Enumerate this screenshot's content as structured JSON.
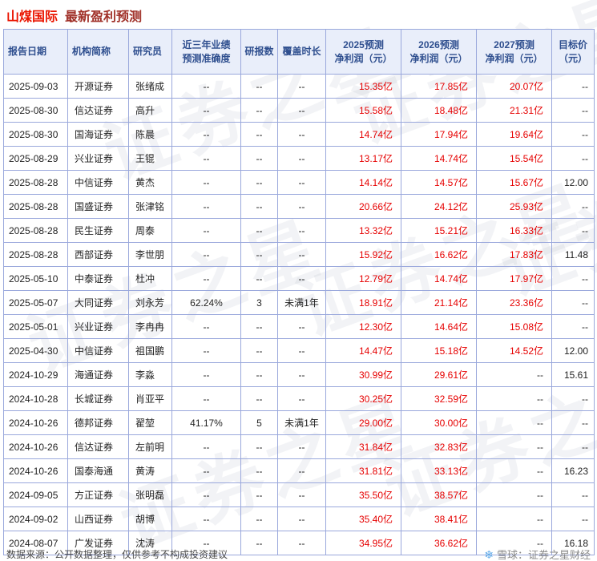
{
  "page": {
    "title_stock": "山煤国际",
    "title_rest": "最新盈利预测"
  },
  "chart_data": {
    "type": "table",
    "title": "山煤国际 最新盈利预测",
    "columns": [
      {
        "line1": "报告日期",
        "line2": ""
      },
      {
        "line1": "机构简称",
        "line2": ""
      },
      {
        "line1": "研究员",
        "line2": ""
      },
      {
        "line1": "近三年业绩",
        "line2": "预测准确度"
      },
      {
        "line1": "研报数",
        "line2": ""
      },
      {
        "line1": "覆盖时长",
        "line2": ""
      },
      {
        "line1": "2025预测",
        "line2": "净利润（元）"
      },
      {
        "line1": "2026预测",
        "line2": "净利润（元）"
      },
      {
        "line1": "2027预测",
        "line2": "净利润（元）"
      },
      {
        "line1": "目标价",
        "line2": "（元）"
      }
    ],
    "rows": [
      [
        "2025-09-03",
        "开源证券",
        "张绪成",
        "--",
        "--",
        "--",
        "15.35亿",
        "17.85亿",
        "20.07亿",
        "--"
      ],
      [
        "2025-08-30",
        "信达证券",
        "高升",
        "--",
        "--",
        "--",
        "15.58亿",
        "18.48亿",
        "21.31亿",
        "--"
      ],
      [
        "2025-08-30",
        "国海证券",
        "陈晨",
        "--",
        "--",
        "--",
        "14.74亿",
        "17.94亿",
        "19.64亿",
        "--"
      ],
      [
        "2025-08-29",
        "兴业证券",
        "王锟",
        "--",
        "--",
        "--",
        "13.17亿",
        "14.74亿",
        "15.54亿",
        "--"
      ],
      [
        "2025-08-28",
        "中信证券",
        "黄杰",
        "--",
        "--",
        "--",
        "14.14亿",
        "14.57亿",
        "15.67亿",
        "12.00"
      ],
      [
        "2025-08-28",
        "国盛证券",
        "张津铭",
        "--",
        "--",
        "--",
        "20.66亿",
        "24.12亿",
        "25.93亿",
        "--"
      ],
      [
        "2025-08-28",
        "民生证券",
        "周泰",
        "--",
        "--",
        "--",
        "13.32亿",
        "15.21亿",
        "16.33亿",
        "--"
      ],
      [
        "2025-08-28",
        "西部证券",
        "李世朋",
        "--",
        "--",
        "--",
        "15.92亿",
        "16.62亿",
        "17.83亿",
        "11.48"
      ],
      [
        "2025-05-10",
        "中泰证券",
        "杜冲",
        "--",
        "--",
        "--",
        "12.79亿",
        "14.74亿",
        "17.97亿",
        "--"
      ],
      [
        "2025-05-07",
        "大同证券",
        "刘永芳",
        "62.24%",
        "3",
        "未满1年",
        "18.91亿",
        "21.14亿",
        "23.36亿",
        "--"
      ],
      [
        "2025-05-01",
        "兴业证券",
        "李冉冉",
        "--",
        "--",
        "--",
        "12.30亿",
        "14.64亿",
        "15.08亿",
        "--"
      ],
      [
        "2025-04-30",
        "中信证券",
        "祖国鹏",
        "--",
        "--",
        "--",
        "14.47亿",
        "15.18亿",
        "14.52亿",
        "12.00"
      ],
      [
        "2024-10-29",
        "海通证券",
        "李淼",
        "--",
        "--",
        "--",
        "30.99亿",
        "29.61亿",
        "--",
        "15.61"
      ],
      [
        "2024-10-28",
        "长城证券",
        "肖亚平",
        "--",
        "--",
        "--",
        "30.25亿",
        "32.59亿",
        "--",
        "--"
      ],
      [
        "2024-10-26",
        "德邦证券",
        "翟堃",
        "41.17%",
        "5",
        "未满1年",
        "29.00亿",
        "30.00亿",
        "--",
        "--"
      ],
      [
        "2024-10-26",
        "信达证券",
        "左前明",
        "--",
        "--",
        "--",
        "31.84亿",
        "32.83亿",
        "--",
        "--"
      ],
      [
        "2024-10-26",
        "国泰海通",
        "黄涛",
        "--",
        "--",
        "--",
        "31.81亿",
        "33.13亿",
        "--",
        "16.23"
      ],
      [
        "2024-09-05",
        "方正证券",
        "张明磊",
        "--",
        "--",
        "--",
        "35.50亿",
        "38.57亿",
        "--",
        "--"
      ],
      [
        "2024-09-02",
        "山西证券",
        "胡博",
        "--",
        "--",
        "--",
        "35.40亿",
        "38.41亿",
        "--",
        "--"
      ],
      [
        "2024-08-07",
        "广发证券",
        "沈涛",
        "--",
        "--",
        "--",
        "34.95亿",
        "36.62亿",
        "--",
        "16.18"
      ]
    ]
  },
  "watermark_text": "证券之星",
  "footer": {
    "source": "数据来源：公开数据整理，仅供参考不构成投资建议",
    "brand": "雪球：证券之星财经",
    "brand_icon_glyph": "❄"
  },
  "colors": {
    "title-stock": "#ea1500",
    "title-rest": "#a03028",
    "accent-red": "#e60000",
    "header-text": "#2f4f8f",
    "header-bg": "#e9eefa",
    "grid-border": "#9aa8dc",
    "cell-text": "#222222",
    "footer-text": "#4a4a4a",
    "brand-text": "#8a8a8a",
    "brand-icon": "#5aa7e8"
  }
}
